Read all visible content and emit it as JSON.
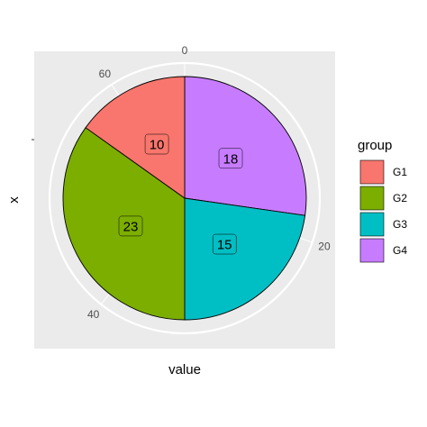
{
  "chart_data": {
    "type": "pie",
    "xlabel": "value",
    "ylabel": "x",
    "categories": [
      "G1",
      "G2",
      "G3",
      "G4"
    ],
    "values": [
      10,
      23,
      15,
      18
    ],
    "colors": [
      "#F8766D",
      "#7CAE00",
      "#00BFC4",
      "#C77CFF"
    ],
    "theta_ticks": [
      "0",
      "20",
      "40",
      "60"
    ],
    "theta_tick_values": [
      0,
      20,
      40,
      60
    ],
    "legend": {
      "title": "group",
      "position": "right"
    },
    "panel_background": "#EBEBEB",
    "grid": true,
    "slice_order": "clockwise from top, reverse of legend order"
  }
}
